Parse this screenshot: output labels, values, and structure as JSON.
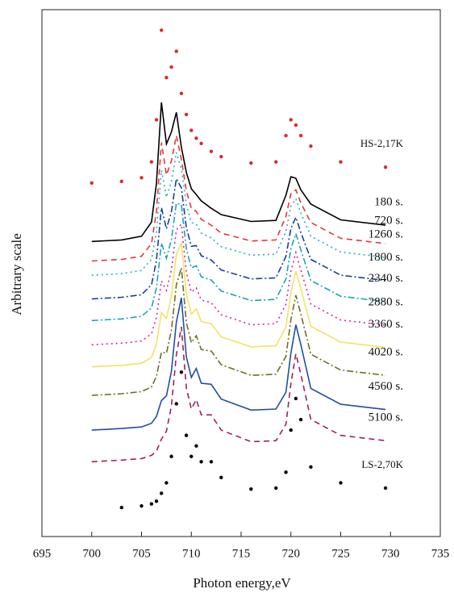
{
  "chart_data": {
    "type": "line",
    "xlabel": "Photon energy,eV",
    "ylabel": "Arbitrary scale",
    "xlim": [
      695,
      735
    ],
    "xticks": [
      695,
      700,
      705,
      710,
      715,
      720,
      725,
      730,
      735
    ],
    "ylim": [
      0,
      100
    ],
    "x": [
      700,
      703,
      705,
      706,
      706.5,
      707,
      707.5,
      708,
      708.5,
      709,
      709.5,
      710,
      710.5,
      711,
      712,
      713,
      716,
      718.5,
      719.5,
      720,
      720.5,
      721,
      722,
      725,
      729.5
    ],
    "series": [
      {
        "name": "HS-2,17K",
        "color": "#e02828",
        "style": "dots",
        "values": [
          67.1,
          67.4,
          68.1,
          71.1,
          79.1,
          96.1,
          87.1,
          89.1,
          92.1,
          84.1,
          80.1,
          77.1,
          75.6,
          74.6,
          73.1,
          72.1,
          70.9,
          71.1,
          76.1,
          79.1,
          78.1,
          76.1,
          74.1,
          71.1,
          70.1
        ]
      },
      {
        "name": "180 s.",
        "color": "#000000",
        "style": "solid",
        "values": [
          56,
          56.3,
          57,
          59.7,
          67,
          82.4,
          74.5,
          76.8,
          80.5,
          73.9,
          69.1,
          66,
          64.9,
          63.7,
          62.3,
          61.1,
          59.8,
          60,
          64.8,
          68.3,
          68,
          65.8,
          63.1,
          60.1,
          59.1
        ]
      },
      {
        "name": "720 s.",
        "color": "#e03a3a",
        "style": "dashed",
        "values": [
          52.3,
          52.6,
          53.2,
          55.6,
          61.7,
          74.8,
          68.6,
          71.3,
          76.1,
          71.6,
          65.6,
          62.3,
          61.7,
          60.2,
          59.1,
          57.6,
          56.1,
          56.3,
          60.8,
          65.1,
          65.8,
          63.3,
          59.6,
          56.6,
          55.6
        ]
      },
      {
        "name": "1260 s.",
        "color": "#22b0c4",
        "style": "dotted",
        "values": [
          49.6,
          49.9,
          50.5,
          52.6,
          57.9,
          69.5,
          64.4,
          67.4,
          72.9,
          69.8,
          63,
          59.6,
          59.3,
          57.6,
          56.7,
          55,
          53.4,
          53.6,
          57.9,
          62.7,
          64.1,
          61.4,
          57,
          54,
          53
        ]
      },
      {
        "name": "1800 s.",
        "color": "#1c3c9c",
        "style": "dashdot",
        "values": [
          45.1,
          45.4,
          45.9,
          47.8,
          52.4,
          62.4,
          58.4,
          61.7,
          67.9,
          66.2,
          58.6,
          55.1,
          55.2,
          53.3,
          52.5,
          50.6,
          48.9,
          49.1,
          53.2,
          58.5,
          60.6,
          57.7,
          52.6,
          49.6,
          48.6
        ]
      },
      {
        "name": "2340 s.",
        "color": "#1fa3b3",
        "style": "dashdot",
        "values": [
          41,
          41.3,
          41.8,
          43.4,
          47.2,
          55.7,
          52.8,
          56.4,
          63.3,
          63,
          54.6,
          51,
          51.4,
          49.3,
          48.7,
          46.6,
          44.8,
          45,
          48.9,
          54.7,
          57.5,
          54.4,
          48.6,
          45.6,
          44.6
        ]
      },
      {
        "name": "2880 s.",
        "color": "#e020a0",
        "style": "dotted",
        "values": [
          36.4,
          36.7,
          37.1,
          38.5,
          41.6,
          48.5,
          46.7,
          50.6,
          58.2,
          59.3,
          50.1,
          46.4,
          47.2,
          44.9,
          44.4,
          42.1,
          40.2,
          40.4,
          44.1,
          50.4,
          53.9,
          50.6,
          44.1,
          41.1,
          40.1
        ]
      },
      {
        "name": "3360 s.",
        "color": "#f2e266",
        "style": "solid",
        "values": [
          32.2,
          32.5,
          32.9,
          34,
          36.6,
          42.5,
          41.4,
          45.6,
          53.6,
          55.7,
          45.9,
          42.2,
          43.2,
          40.8,
          40.4,
          37.9,
          36,
          36.2,
          39.8,
          46.4,
          50.4,
          47,
          39.9,
          36.9,
          35.9
        ]
      },
      {
        "name": "4020 s.",
        "color": "#6e6e22",
        "style": "dashdot",
        "values": [
          26.8,
          27.1,
          27.5,
          28.4,
          30.4,
          35,
          34.8,
          39.2,
          47.8,
          51,
          40.6,
          36.8,
          38.1,
          35.5,
          35.2,
          32.6,
          30.6,
          30.8,
          34.2,
          41.2,
          45.8,
          42.2,
          34.6,
          31.6,
          30.6
        ]
      },
      {
        "name": "4560 s.",
        "color": "#2050a0",
        "style": "solid",
        "values": [
          20.2,
          20.5,
          20.8,
          21.5,
          22.8,
          25.8,
          26.7,
          31.4,
          40.7,
          45.3,
          34.1,
          30.2,
          31.9,
          29.1,
          28.9,
          26.1,
          24,
          24.2,
          27.4,
          34.9,
          40.2,
          36.4,
          28.1,
          25.1,
          24.1
        ]
      },
      {
        "name": "5100 s.",
        "color": "#a02060",
        "style": "dashed",
        "values": [
          14.2,
          14.5,
          14.8,
          15.4,
          16.2,
          18.5,
          20,
          24.8,
          34.5,
          39.8,
          28.2,
          24.2,
          26,
          23.1,
          23.1,
          20.2,
          18,
          18.2,
          21.3,
          29.1,
          34.7,
          30.8,
          22.2,
          19.2,
          18.2
        ]
      },
      {
        "name": "LS-2,70K",
        "color": "#000000",
        "style": "dots",
        "values": [
          null,
          5.5,
          5.8,
          6.2,
          6.7,
          8.2,
          10.2,
          15.2,
          25.2,
          31.2,
          19.2,
          15.2,
          17.2,
          14.2,
          14.2,
          11.2,
          9,
          9.2,
          12.2,
          20.2,
          26.2,
          22.2,
          13.2,
          10.2,
          9.2
        ]
      }
    ]
  }
}
